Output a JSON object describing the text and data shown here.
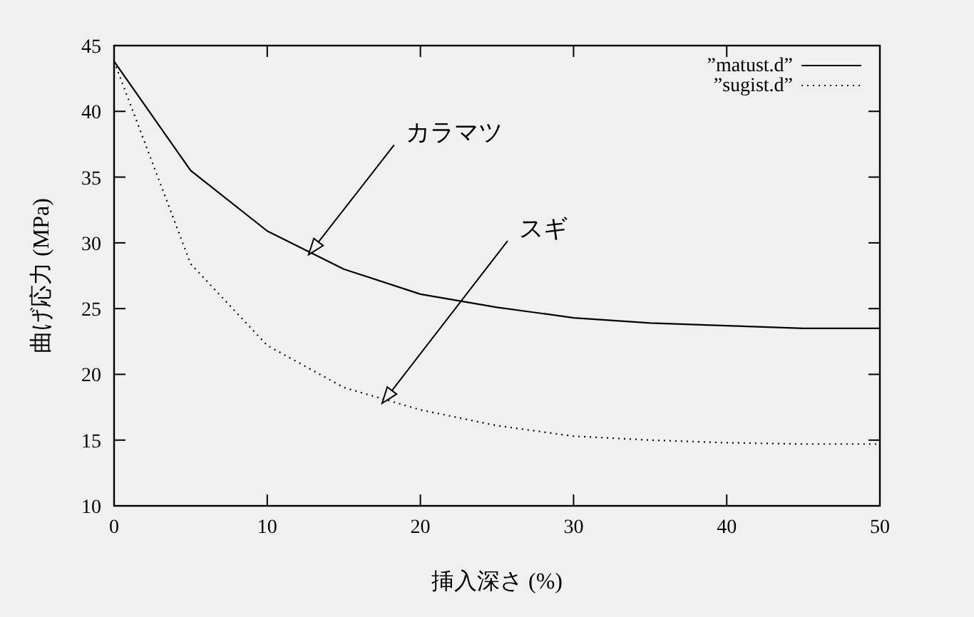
{
  "chart_data": {
    "type": "line",
    "xlabel": "挿入深さ (%)",
    "ylabel": "曲げ応力 (MPa)",
    "x": [
      0,
      5,
      10,
      15,
      20,
      25,
      30,
      35,
      40,
      45,
      50
    ],
    "series": [
      {
        "name": "”matust.d”",
        "color": "#000000",
        "line_style": "solid",
        "values": [
          43.8,
          35.5,
          30.9,
          28.0,
          26.1,
          25.1,
          24.3,
          23.9,
          23.7,
          23.5,
          23.5
        ]
      },
      {
        "name": "”sugist.d”",
        "color": "#000000",
        "line_style": "dotted",
        "values": [
          43.8,
          28.4,
          22.2,
          19.0,
          17.3,
          16.1,
          15.3,
          15.0,
          14.8,
          14.7,
          14.7
        ]
      }
    ],
    "xlim": [
      0,
      50
    ],
    "ylim": [
      10,
      45
    ],
    "xticks": [
      0,
      10,
      20,
      30,
      40,
      50
    ],
    "yticks": [
      10,
      15,
      20,
      25,
      30,
      35,
      40,
      45
    ],
    "annotations": [
      {
        "text": "カラマツ",
        "x": 12.7,
        "y": 29.1
      },
      {
        "text": "スギ",
        "x": 17.5,
        "y": 17.8
      }
    ],
    "legend": "top right",
    "grid": false,
    "marker": "none"
  }
}
